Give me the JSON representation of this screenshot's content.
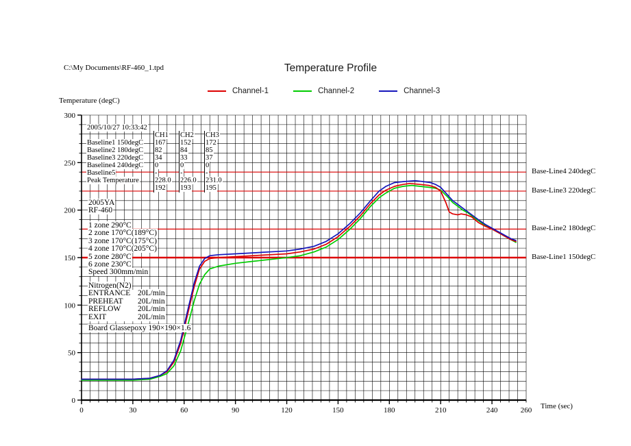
{
  "header": {
    "file_path": "C:\\My Documents\\RF-460_1.tpd",
    "title": "Temperature Profile"
  },
  "legend": [
    {
      "label": "Channel-1",
      "color": "#dd0000"
    },
    {
      "label": "Channel-2",
      "color": "#00cc00"
    },
    {
      "label": "Channel-3",
      "color": "#1515bb"
    }
  ],
  "axes": {
    "y_label": "Temperature (degC)",
    "x_label": "Time (sec)",
    "x_ticks": [
      0,
      30,
      60,
      90,
      120,
      150,
      180,
      210,
      240,
      260
    ],
    "y_ticks": [
      0,
      50,
      100,
      150,
      200,
      250,
      300
    ]
  },
  "info_table": {
    "timestamp": "2005/10/27 10:33:42",
    "columns": [
      "CH1",
      "CH2",
      "CH3"
    ],
    "rows": [
      {
        "label": "Baseline1 150degC",
        "values": [
          "167",
          "152",
          "172"
        ]
      },
      {
        "label": "Baseline2 180degC",
        "values": [
          "82",
          "84",
          "85"
        ]
      },
      {
        "label": "Baseline3 220degC",
        "values": [
          "34",
          "33",
          "37"
        ]
      },
      {
        "label": "Baseline4 240degC",
        "values": [
          "0",
          "0",
          "0"
        ]
      },
      {
        "label": "Baseline5",
        "values": [
          "-",
          "-",
          "-"
        ]
      },
      {
        "label": "Peak Temperature",
        "values": [
          "228.0",
          "226.0",
          "231.0"
        ]
      },
      {
        "label": "",
        "values": [
          "192",
          "193",
          "195"
        ]
      }
    ]
  },
  "profile_info": {
    "line1": "2005YA",
    "line2": "RF-460"
  },
  "zones": [
    "1 zone 290°C",
    "2 zone 170°C(189°C)",
    "3 zone 170°C(175°C)",
    "4 zone 170°C(205°C)",
    "5 zone 280°C",
    "6 zone 230°C",
    "Speed 300mm/min"
  ],
  "gas": {
    "title": "Nitrogen(N2)",
    "rows": [
      {
        "name": "ENTRANCE",
        "value": "20L/min"
      },
      {
        "name": "PREHEAT",
        "value": "20L/min"
      },
      {
        "name": "REFLOW",
        "value": "20L/min"
      },
      {
        "name": "EXIT",
        "value": "20L/min"
      }
    ]
  },
  "board": "Board Glassepoxy 190×190×1.6",
  "baseline_labels": [
    {
      "label": "Base-Line4 240degC",
      "value": 240
    },
    {
      "label": "Base-Line3 220degC",
      "value": 220
    },
    {
      "label": "Base-Line2 180degC",
      "value": 180
    },
    {
      "label": "Base-Line1 150degC",
      "value": 150
    }
  ],
  "chart_data": {
    "type": "line",
    "title": "Temperature Profile",
    "xlabel": "Time (sec)",
    "ylabel": "Temperature (degC)",
    "xlim": [
      0,
      260
    ],
    "ylim": [
      0,
      300
    ],
    "grid": {
      "on": true,
      "x_step": 5,
      "y_step": 10
    },
    "baseline_color": "#dd0000",
    "baselines": [
      150,
      180,
      220,
      240
    ],
    "series": [
      {
        "name": "Channel-1",
        "color": "#dd0000",
        "peak_temp": 228.0,
        "peak_time": 192,
        "points": [
          [
            0,
            22
          ],
          [
            15,
            22
          ],
          [
            30,
            22
          ],
          [
            40,
            23
          ],
          [
            46,
            26
          ],
          [
            50,
            30
          ],
          [
            54,
            40
          ],
          [
            58,
            60
          ],
          [
            62,
            90
          ],
          [
            66,
            120
          ],
          [
            69,
            138
          ],
          [
            72,
            146
          ],
          [
            75,
            149
          ],
          [
            80,
            150
          ],
          [
            90,
            151
          ],
          [
            100,
            152
          ],
          [
            110,
            153
          ],
          [
            120,
            154
          ],
          [
            128,
            156
          ],
          [
            136,
            159
          ],
          [
            143,
            164
          ],
          [
            150,
            172
          ],
          [
            157,
            183
          ],
          [
            163,
            194
          ],
          [
            169,
            207
          ],
          [
            174,
            216
          ],
          [
            178,
            221
          ],
          [
            183,
            225
          ],
          [
            188,
            227
          ],
          [
            192,
            228
          ],
          [
            198,
            227
          ],
          [
            203,
            226
          ],
          [
            207,
            224
          ],
          [
            210,
            220
          ],
          [
            213,
            208
          ],
          [
            215,
            198
          ],
          [
            217,
            196
          ],
          [
            220,
            195
          ],
          [
            222,
            196
          ],
          [
            225,
            195
          ],
          [
            228,
            193
          ],
          [
            232,
            187
          ],
          [
            236,
            183
          ],
          [
            240,
            180
          ],
          [
            244,
            176
          ],
          [
            248,
            172
          ],
          [
            251,
            169
          ],
          [
            254,
            167
          ]
        ]
      },
      {
        "name": "Channel-2",
        "color": "#00cc00",
        "peak_temp": 226.0,
        "peak_time": 193,
        "points": [
          [
            0,
            21
          ],
          [
            15,
            21
          ],
          [
            30,
            21
          ],
          [
            40,
            22
          ],
          [
            46,
            25
          ],
          [
            50,
            28
          ],
          [
            54,
            36
          ],
          [
            58,
            52
          ],
          [
            62,
            78
          ],
          [
            66,
            105
          ],
          [
            69,
            122
          ],
          [
            72,
            132
          ],
          [
            75,
            138
          ],
          [
            80,
            141
          ],
          [
            90,
            144
          ],
          [
            100,
            146
          ],
          [
            110,
            148
          ],
          [
            120,
            150
          ],
          [
            128,
            152
          ],
          [
            136,
            156
          ],
          [
            143,
            161
          ],
          [
            150,
            169
          ],
          [
            157,
            180
          ],
          [
            163,
            191
          ],
          [
            169,
            204
          ],
          [
            174,
            213
          ],
          [
            178,
            218
          ],
          [
            183,
            223
          ],
          [
            188,
            225
          ],
          [
            193,
            226
          ],
          [
            198,
            225
          ],
          [
            203,
            224
          ],
          [
            207,
            223
          ],
          [
            210,
            221
          ],
          [
            214,
            214
          ],
          [
            217,
            208
          ],
          [
            220,
            204
          ],
          [
            223,
            200
          ],
          [
            226,
            197
          ],
          [
            229,
            193
          ],
          [
            232,
            189
          ],
          [
            236,
            184
          ],
          [
            240,
            180
          ],
          [
            244,
            176
          ],
          [
            248,
            172
          ],
          [
            251,
            169
          ],
          [
            254,
            166
          ]
        ]
      },
      {
        "name": "Channel-3",
        "color": "#1515bb",
        "peak_temp": 231.0,
        "peak_time": 195,
        "points": [
          [
            0,
            22
          ],
          [
            15,
            22
          ],
          [
            30,
            22
          ],
          [
            40,
            23
          ],
          [
            46,
            26
          ],
          [
            50,
            31
          ],
          [
            54,
            42
          ],
          [
            58,
            63
          ],
          [
            62,
            94
          ],
          [
            66,
            124
          ],
          [
            69,
            141
          ],
          [
            72,
            149
          ],
          [
            75,
            152
          ],
          [
            80,
            153
          ],
          [
            90,
            154
          ],
          [
            100,
            155
          ],
          [
            110,
            156
          ],
          [
            120,
            157
          ],
          [
            128,
            159
          ],
          [
            136,
            162
          ],
          [
            143,
            167
          ],
          [
            150,
            175
          ],
          [
            157,
            186
          ],
          [
            163,
            197
          ],
          [
            169,
            210
          ],
          [
            174,
            220
          ],
          [
            178,
            225
          ],
          [
            183,
            229
          ],
          [
            188,
            230
          ],
          [
            195,
            231
          ],
          [
            200,
            230
          ],
          [
            204,
            229
          ],
          [
            207,
            227
          ],
          [
            210,
            224
          ],
          [
            214,
            216
          ],
          [
            217,
            210
          ],
          [
            220,
            206
          ],
          [
            223,
            202
          ],
          [
            226,
            198
          ],
          [
            229,
            194
          ],
          [
            232,
            190
          ],
          [
            236,
            185
          ],
          [
            240,
            181
          ],
          [
            244,
            177
          ],
          [
            248,
            173
          ],
          [
            251,
            170
          ],
          [
            254,
            168
          ]
        ]
      }
    ]
  }
}
